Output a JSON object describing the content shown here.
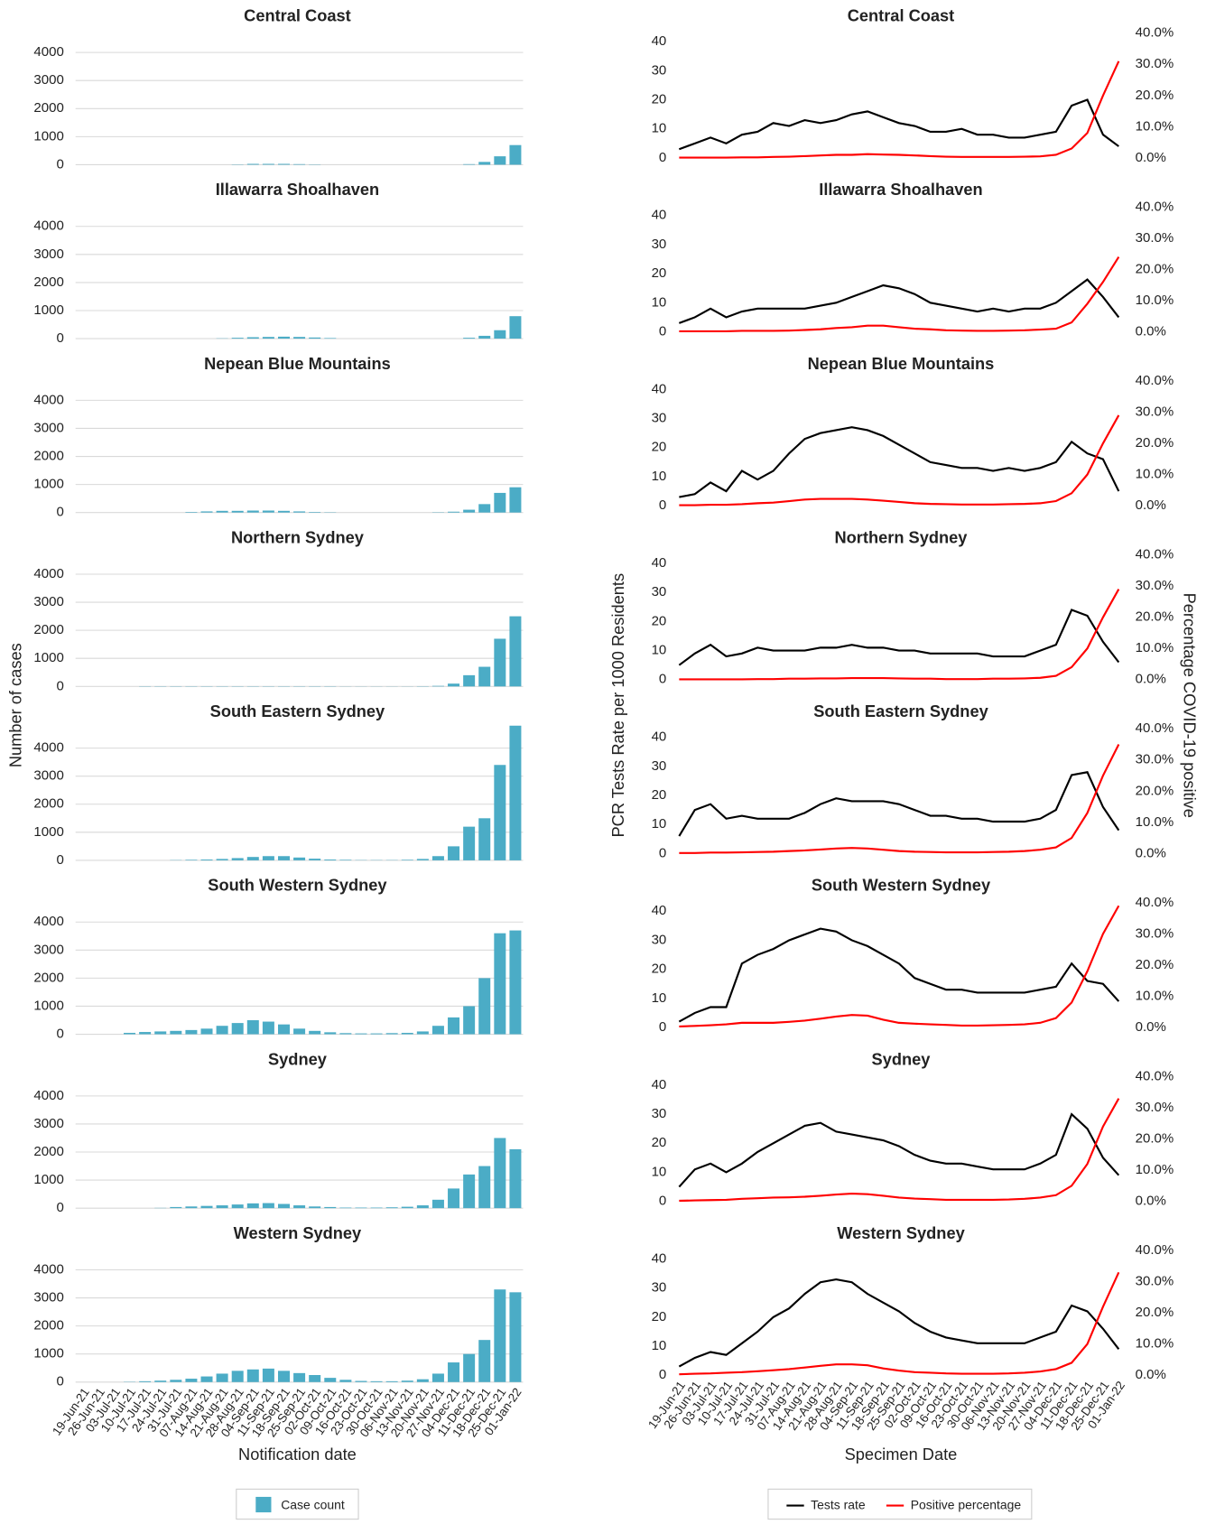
{
  "chart_data": [
    {
      "type": "bar",
      "x_label": "Notification date",
      "y_label": "Number of cases",
      "categories": [
        "19-Jun-21",
        "26-Jun-21",
        "03-Jul-21",
        "10-Jul-21",
        "17-Jul-21",
        "24-Jul-21",
        "31-Jul-21",
        "07-Aug-21",
        "14-Aug-21",
        "21-Aug-21",
        "28-Aug-21",
        "04-Sep-21",
        "11-Sep-21",
        "18-Sep-21",
        "25-Sep-21",
        "02-Oct-21",
        "09-Oct-21",
        "16-Oct-21",
        "23-Oct-21",
        "30-Oct-21",
        "06-Nov-21",
        "13-Nov-21",
        "20-Nov-21",
        "27-Nov-21",
        "04-Dec-21",
        "11-Dec-21",
        "18-Dec-21",
        "25-Dec-21",
        "01-Jan-22"
      ],
      "ylim": [
        0,
        4800
      ],
      "yticks": [
        0,
        1000,
        2000,
        3000,
        4000
      ],
      "grid": true,
      "series": [
        {
          "name": "Case count",
          "color": "#4bacc6"
        }
      ],
      "panels": [
        {
          "title": "Central Coast",
          "values": [
            0,
            0,
            0,
            0,
            0,
            0,
            0,
            0,
            0,
            0,
            10,
            30,
            30,
            30,
            20,
            10,
            0,
            0,
            0,
            0,
            0,
            0,
            0,
            0,
            0,
            20,
            100,
            300,
            700
          ]
        },
        {
          "title": "Illawarra Shoalhaven",
          "values": [
            0,
            0,
            0,
            0,
            0,
            0,
            0,
            0,
            0,
            10,
            30,
            50,
            60,
            70,
            60,
            40,
            20,
            0,
            0,
            0,
            0,
            0,
            0,
            0,
            0,
            30,
            100,
            300,
            800
          ]
        },
        {
          "title": "Nepean Blue Mountains",
          "values": [
            0,
            0,
            0,
            0,
            0,
            0,
            0,
            20,
            40,
            60,
            60,
            70,
            70,
            60,
            40,
            20,
            10,
            0,
            0,
            0,
            0,
            0,
            0,
            10,
            30,
            100,
            300,
            700,
            900
          ]
        },
        {
          "title": "Northern Sydney",
          "values": [
            0,
            0,
            0,
            0,
            10,
            10,
            10,
            10,
            10,
            10,
            10,
            10,
            10,
            10,
            10,
            10,
            10,
            5,
            5,
            5,
            5,
            5,
            10,
            20,
            100,
            400,
            700,
            1700,
            2500
          ]
        },
        {
          "title": "South Eastern Sydney",
          "values": [
            0,
            0,
            0,
            0,
            0,
            0,
            10,
            20,
            30,
            50,
            80,
            120,
            150,
            150,
            100,
            60,
            30,
            20,
            10,
            10,
            10,
            20,
            50,
            150,
            500,
            1200,
            1500,
            3400,
            4800
          ]
        },
        {
          "title": "South Western Sydney",
          "values": [
            0,
            0,
            0,
            50,
            80,
            100,
            120,
            150,
            200,
            300,
            400,
            500,
            450,
            350,
            200,
            120,
            70,
            40,
            30,
            30,
            40,
            50,
            100,
            300,
            600,
            1000,
            2000,
            3600,
            3700
          ]
        },
        {
          "title": "Sydney",
          "values": [
            0,
            0,
            0,
            0,
            0,
            10,
            40,
            60,
            80,
            100,
            130,
            170,
            180,
            150,
            100,
            60,
            40,
            20,
            20,
            20,
            30,
            50,
            100,
            300,
            700,
            1200,
            1500,
            2500,
            2100
          ]
        },
        {
          "title": "Western Sydney",
          "values": [
            0,
            0,
            0,
            10,
            30,
            50,
            80,
            120,
            200,
            300,
            400,
            450,
            480,
            400,
            320,
            250,
            150,
            80,
            40,
            30,
            30,
            50,
            100,
            300,
            700,
            1000,
            1500,
            3300,
            3200
          ]
        }
      ]
    },
    {
      "type": "line",
      "x_label": "Specimen Date",
      "y_label": "PCR Tests Rate per 1000 Residents",
      "y2_label": "Percentage COVID-19 positive",
      "categories": [
        "19-Jun-21",
        "26-Jun-21",
        "03-Jul-21",
        "10-Jul-21",
        "17-Jul-21",
        "24-Jul-21",
        "31-Jul-21",
        "07-Aug-21",
        "14-Aug-21",
        "21-Aug-21",
        "28-Aug-21",
        "04-Sep-21",
        "11-Sep-21",
        "18-Sep-21",
        "25-Sep-21",
        "02-Oct-21",
        "09-Oct-21",
        "16-Oct-21",
        "23-Oct-21",
        "30-Oct-21",
        "06-Nov-21",
        "13-Nov-21",
        "20-Nov-21",
        "27-Nov-21",
        "04-Dec-21",
        "11-Dec-21",
        "18-Dec-21",
        "25-Dec-21",
        "01-Jan-22"
      ],
      "ylim": [
        0,
        44
      ],
      "yticks": [
        0,
        10,
        20,
        30,
        40
      ],
      "y2lim": [
        0,
        41
      ],
      "y2ticks": [
        {
          "value": 0,
          "label": "0.0%"
        },
        {
          "value": 10,
          "label": "10.0%"
        },
        {
          "value": 20,
          "label": "20.0%"
        },
        {
          "value": 30,
          "label": "30.0%"
        },
        {
          "value": 40,
          "label": "40.0%"
        }
      ],
      "series": [
        {
          "name": "Tests rate",
          "color": "#000000"
        },
        {
          "name": "Positive percentage",
          "color": "#ff0000",
          "axis": "y2"
        }
      ],
      "panels": [
        {
          "title": "Central Coast",
          "series_values": [
            [
              3,
              5,
              7,
              5,
              8,
              9,
              12,
              11,
              13,
              12,
              13,
              15,
              16,
              14,
              12,
              11,
              9,
              9,
              10,
              8,
              8,
              7,
              7,
              8,
              9,
              18,
              20,
              8,
              4
            ],
            [
              0.1,
              0.1,
              0.1,
              0.1,
              0.2,
              0.2,
              0.3,
              0.4,
              0.6,
              0.8,
              1,
              1,
              1.2,
              1.1,
              1,
              0.8,
              0.6,
              0.4,
              0.3,
              0.3,
              0.3,
              0.3,
              0.4,
              0.5,
              1,
              3,
              8,
              20,
              31
            ]
          ]
        },
        {
          "title": "Illawarra Shoalhaven",
          "series_values": [
            [
              3,
              5,
              8,
              5,
              7,
              8,
              8,
              8,
              8,
              9,
              10,
              12,
              14,
              16,
              15,
              13,
              10,
              9,
              8,
              7,
              8,
              7,
              8,
              8,
              10,
              14,
              18,
              12,
              5
            ],
            [
              0.2,
              0.2,
              0.2,
              0.2,
              0.3,
              0.3,
              0.3,
              0.4,
              0.6,
              0.8,
              1.2,
              1.5,
              2,
              2,
              1.5,
              1,
              0.8,
              0.5,
              0.4,
              0.3,
              0.3,
              0.4,
              0.5,
              0.7,
              1,
              3,
              9,
              16,
              24
            ]
          ]
        },
        {
          "title": "Nepean Blue Mountains",
          "series_values": [
            [
              3,
              4,
              8,
              5,
              12,
              9,
              12,
              18,
              23,
              25,
              26,
              27,
              26,
              24,
              21,
              18,
              15,
              14,
              13,
              13,
              12,
              13,
              12,
              13,
              15,
              22,
              18,
              16,
              5
            ],
            [
              0.2,
              0.2,
              0.3,
              0.3,
              0.5,
              0.8,
              1,
              1.5,
              2,
              2.2,
              2.2,
              2.2,
              2,
              1.6,
              1.2,
              0.8,
              0.6,
              0.5,
              0.4,
              0.4,
              0.4,
              0.5,
              0.6,
              0.8,
              1.5,
              4,
              10,
              20,
              29
            ]
          ]
        },
        {
          "title": "Northern Sydney",
          "series_values": [
            [
              5,
              9,
              12,
              8,
              9,
              11,
              10,
              10,
              10,
              11,
              11,
              12,
              11,
              11,
              10,
              10,
              9,
              9,
              9,
              9,
              8,
              8,
              8,
              10,
              12,
              24,
              22,
              13,
              6
            ],
            [
              0.1,
              0.1,
              0.1,
              0.1,
              0.1,
              0.2,
              0.2,
              0.3,
              0.3,
              0.4,
              0.4,
              0.5,
              0.5,
              0.5,
              0.4,
              0.3,
              0.3,
              0.2,
              0.2,
              0.2,
              0.3,
              0.3,
              0.4,
              0.6,
              1.2,
              4,
              10,
              20,
              29
            ]
          ]
        },
        {
          "title": "South Eastern Sydney",
          "series_values": [
            [
              6,
              15,
              17,
              12,
              13,
              12,
              12,
              12,
              14,
              17,
              19,
              18,
              18,
              18,
              17,
              15,
              13,
              13,
              12,
              12,
              11,
              11,
              11,
              12,
              15,
              27,
              28,
              16,
              8
            ],
            [
              0.2,
              0.2,
              0.3,
              0.3,
              0.4,
              0.5,
              0.6,
              0.8,
              1,
              1.3,
              1.6,
              1.8,
              1.6,
              1.2,
              0.8,
              0.6,
              0.5,
              0.4,
              0.4,
              0.4,
              0.5,
              0.6,
              0.8,
              1.2,
              2,
              5,
              13,
              25,
              35
            ]
          ]
        },
        {
          "title": "South Western Sydney",
          "series_values": [
            [
              2,
              5,
              7,
              7,
              22,
              25,
              27,
              30,
              32,
              34,
              33,
              30,
              28,
              25,
              22,
              17,
              15,
              13,
              13,
              12,
              12,
              12,
              12,
              13,
              14,
              22,
              16,
              15,
              9
            ],
            [
              0.3,
              0.5,
              0.7,
              1,
              1.5,
              1.5,
              1.5,
              1.8,
              2.2,
              2.8,
              3.5,
              4,
              3.8,
              2.5,
              1.5,
              1.2,
              1,
              0.8,
              0.6,
              0.6,
              0.7,
              0.8,
              1,
              1.5,
              3,
              8,
              18,
              30,
              39
            ]
          ]
        },
        {
          "title": "Sydney",
          "series_values": [
            [
              5,
              11,
              13,
              10,
              13,
              17,
              20,
              23,
              26,
              27,
              24,
              23,
              22,
              21,
              19,
              16,
              14,
              13,
              13,
              12,
              11,
              11,
              11,
              13,
              16,
              30,
              25,
              15,
              9
            ],
            [
              0.2,
              0.3,
              0.4,
              0.5,
              0.8,
              1,
              1.2,
              1.3,
              1.5,
              1.8,
              2.2,
              2.5,
              2.3,
              1.8,
              1.2,
              0.9,
              0.7,
              0.5,
              0.5,
              0.5,
              0.5,
              0.6,
              0.8,
              1.2,
              2,
              5,
              12,
              24,
              33
            ]
          ]
        },
        {
          "title": "Western Sydney",
          "series_values": [
            [
              3,
              6,
              8,
              7,
              11,
              15,
              20,
              23,
              28,
              32,
              33,
              32,
              28,
              25,
              22,
              18,
              15,
              13,
              12,
              11,
              11,
              11,
              11,
              13,
              15,
              24,
              22,
              16,
              9
            ],
            [
              0.3,
              0.5,
              0.6,
              0.8,
              1,
              1.3,
              1.6,
              2,
              2.5,
              3,
              3.5,
              3.5,
              3.2,
              2.2,
              1.5,
              1,
              0.8,
              0.6,
              0.5,
              0.5,
              0.5,
              0.6,
              0.8,
              1.2,
              2,
              4,
              10,
              22,
              33
            ]
          ]
        }
      ]
    }
  ]
}
